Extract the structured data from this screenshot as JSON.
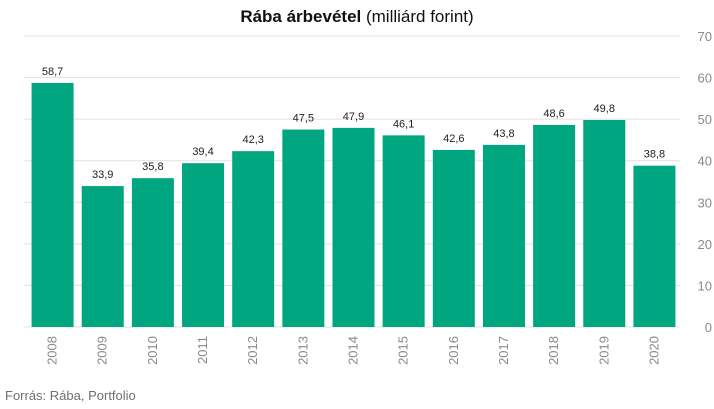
{
  "chart_data": {
    "type": "bar",
    "title_bold": "Rába árbevétel",
    "title_rest": " (milliárd forint)",
    "categories": [
      "2008",
      "2009",
      "2010",
      "2011",
      "2012",
      "2013",
      "2014",
      "2015",
      "2016",
      "2017",
      "2018",
      "2019",
      "2020"
    ],
    "values": [
      58.7,
      33.9,
      35.8,
      39.4,
      42.3,
      47.5,
      47.9,
      46.1,
      42.6,
      43.8,
      48.6,
      49.8,
      38.8
    ],
    "value_labels": [
      "58,7",
      "33,9",
      "35,8",
      "39,4",
      "42,3",
      "47,5",
      "47,9",
      "46,1",
      "42,6",
      "43,8",
      "48,6",
      "49,8",
      "38,8"
    ],
    "ylim": [
      0,
      70
    ],
    "yticks": [
      "0",
      "10",
      "20",
      "30",
      "40",
      "50",
      "60",
      "70"
    ],
    "y_axis_side": "right",
    "grid": true,
    "bar_color": "#00a680",
    "grid_color": "#e1e1e1"
  },
  "source": "Forrás: Rába, Portfolio"
}
